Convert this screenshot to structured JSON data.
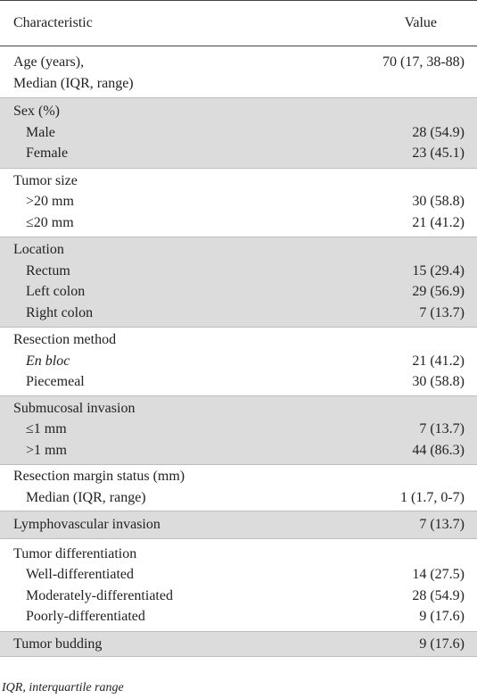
{
  "header": {
    "characteristic": "Characteristic",
    "value": "Value"
  },
  "groups": [
    {
      "shaded": false,
      "rows": [
        {
          "label": "Age (years),",
          "value": "70 (17, 38-88)",
          "sub": false
        },
        {
          "label": "Median (IQR, range)",
          "value": "",
          "sub": false
        }
      ]
    },
    {
      "shaded": true,
      "rows": [
        {
          "label": "Sex (%)",
          "value": "",
          "sub": false
        },
        {
          "label": "Male",
          "value": "28 (54.9)",
          "sub": true
        },
        {
          "label": "Female",
          "value": "23 (45.1)",
          "sub": true
        }
      ]
    },
    {
      "shaded": false,
      "rows": [
        {
          "label": "Tumor size",
          "value": "",
          "sub": false
        },
        {
          "label": ">20 mm",
          "value": "30 (58.8)",
          "sub": true
        },
        {
          "label": "≤20 mm",
          "value": "21 (41.2)",
          "sub": true
        }
      ]
    },
    {
      "shaded": true,
      "rows": [
        {
          "label": "Location",
          "value": "",
          "sub": false
        },
        {
          "label": "Rectum",
          "value": "15 (29.4)",
          "sub": true
        },
        {
          "label": "Left colon",
          "value": "29 (56.9)",
          "sub": true
        },
        {
          "label": "Right colon",
          "value": "7 (13.7)",
          "sub": true
        }
      ]
    },
    {
      "shaded": false,
      "rows": [
        {
          "label": "Resection method",
          "value": "",
          "sub": false
        },
        {
          "label": "En bloc",
          "value": "21 (41.2)",
          "sub": true,
          "italic": true
        },
        {
          "label": "Piecemeal",
          "value": "30 (58.8)",
          "sub": true
        }
      ]
    },
    {
      "shaded": true,
      "rows": [
        {
          "label": "Submucosal invasion",
          "value": "",
          "sub": false
        },
        {
          "label": "≤1 mm",
          "value": "7 (13.7)",
          "sub": true
        },
        {
          "label": ">1 mm",
          "value": "44 (86.3)",
          "sub": true
        }
      ]
    },
    {
      "shaded": false,
      "rows": [
        {
          "label": "Resection margin status (mm)",
          "value": "",
          "sub": false
        },
        {
          "label": "Median (IQR, range)",
          "value": "1 (1.7, 0-7)",
          "sub": true
        }
      ]
    },
    {
      "shaded": true,
      "rows": [
        {
          "label": "Lymphovascular invasion",
          "value": "7 (13.7)",
          "sub": false
        }
      ]
    },
    {
      "shaded": false,
      "rows": [
        {
          "label": "Tumor differentiation",
          "value": "",
          "sub": false
        },
        {
          "label": "Well-differentiated",
          "value": "14 (27.5)",
          "sub": true
        },
        {
          "label": "Moderately-differentiated",
          "value": "28 (54.9)",
          "sub": true
        },
        {
          "label": "Poorly-differentiated",
          "value": "9 (17.6)",
          "sub": true
        }
      ]
    },
    {
      "shaded": true,
      "rows": [
        {
          "label": "Tumor budding",
          "value": "9 (17.6)",
          "sub": false
        }
      ]
    }
  ],
  "footnote": "IQR, interquartile range"
}
